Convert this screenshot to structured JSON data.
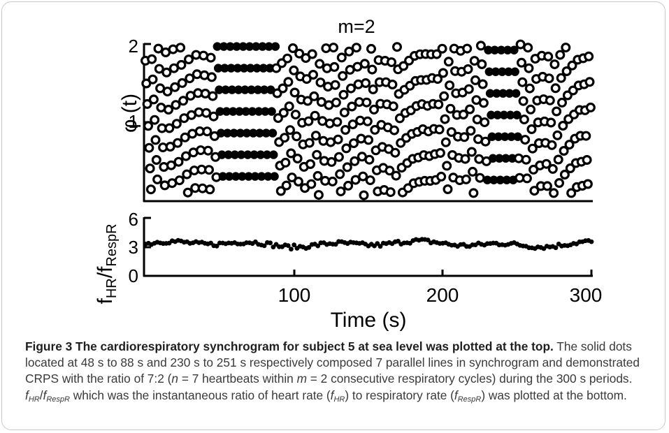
{
  "figure": {
    "top_panel": {
      "title": "m=2",
      "ylabel": "φ (t)",
      "yticks": [
        "2",
        "1"
      ]
    },
    "bottom_panel": {
      "ylabel_main": "f",
      "ylabel_sub1": "HR",
      "ylabel_mid": "/f",
      "ylabel_sub2": "RespR",
      "yticks": [
        "6",
        "3",
        "0"
      ],
      "xticks": [
        "100",
        "200",
        "300"
      ],
      "xlabel": "Time (s)"
    }
  },
  "chart_data": [
    {
      "type": "scatter",
      "title": "m=2",
      "xlabel": "",
      "ylabel": "φ (t)",
      "xlim": [
        0,
        300
      ],
      "ylim": [
        0,
        2
      ],
      "y_ticks": [
        1,
        2
      ],
      "heartbeats_per_cycle": 7,
      "respiratory_cycles": 2,
      "heart_rate_to_respiration_ratio": 3.3,
      "synchronized_intervals": [
        [
          48,
          88
        ],
        [
          230,
          251
        ]
      ],
      "grid": false
    },
    {
      "type": "scatter",
      "xlabel": "Time (s)",
      "ylabel": "fHR/fRespR",
      "xlim": [
        0,
        300
      ],
      "ylim": [
        0,
        6
      ],
      "x_ticks": [
        100,
        200,
        300
      ],
      "y_ticks": [
        0,
        3,
        6
      ],
      "mean_value": 3.3,
      "grid": false
    }
  ],
  "caption": {
    "label": "Figure 3",
    "title": "The cardiorespiratory synchrogram for subject 5 at sea level was plotted at the top.",
    "text1": " The solid dots located at 48 s to 88 s and 230 s to 251 s respectively composed 7 parallel lines in synchrogram and demonstrated CRPS with the ratio of 7:2 (",
    "n": "n",
    "text2": " = 7 heartbeats within ",
    "m": "m",
    "text3": " = 2 consecutive respiratory cycles) during the 300 s periods. ",
    "f1": "f",
    "s1": "HR",
    "slash": "/",
    "f2": "f",
    "s2": "RespR",
    "text4": " which was the instantaneous ratio of heart rate (",
    "f3": "f",
    "s3": "HR",
    "text5": ") to respiratory rate (",
    "f4": "f",
    "s4": "RespR",
    "text6": ") was plotted at the bottom."
  }
}
